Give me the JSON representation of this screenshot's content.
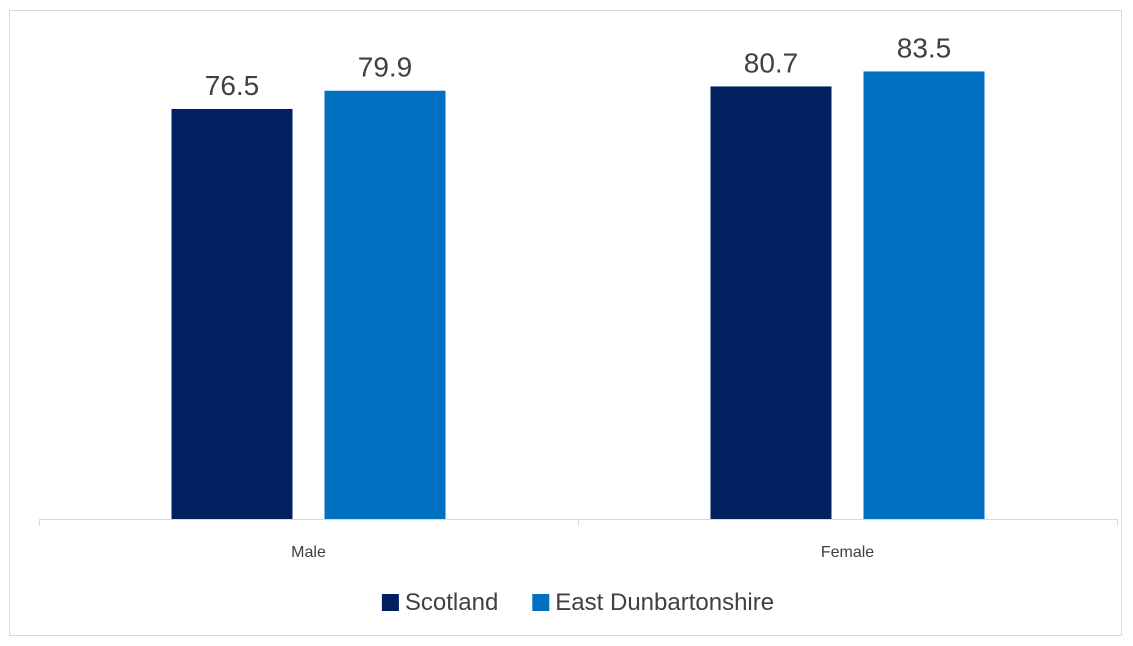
{
  "chart_data": {
    "type": "bar",
    "categories": [
      "Male",
      "Female"
    ],
    "series": [
      {
        "name": "Scotland",
        "values": [
          76.5,
          80.7
        ],
        "color": "#002060"
      },
      {
        "name": "East Dunbartonshire",
        "values": [
          79.9,
          83.5
        ],
        "color": "#0070C0"
      }
    ],
    "data_labels": [
      [
        "76.5",
        "80.7"
      ],
      [
        "79.9",
        "83.5"
      ]
    ],
    "title": "",
    "xlabel": "",
    "ylabel": "",
    "ylim": [
      0,
      91
    ],
    "grid": false,
    "legend_position": "bottom",
    "axis_color": "#d9d9d9",
    "text_color": "#404040"
  }
}
